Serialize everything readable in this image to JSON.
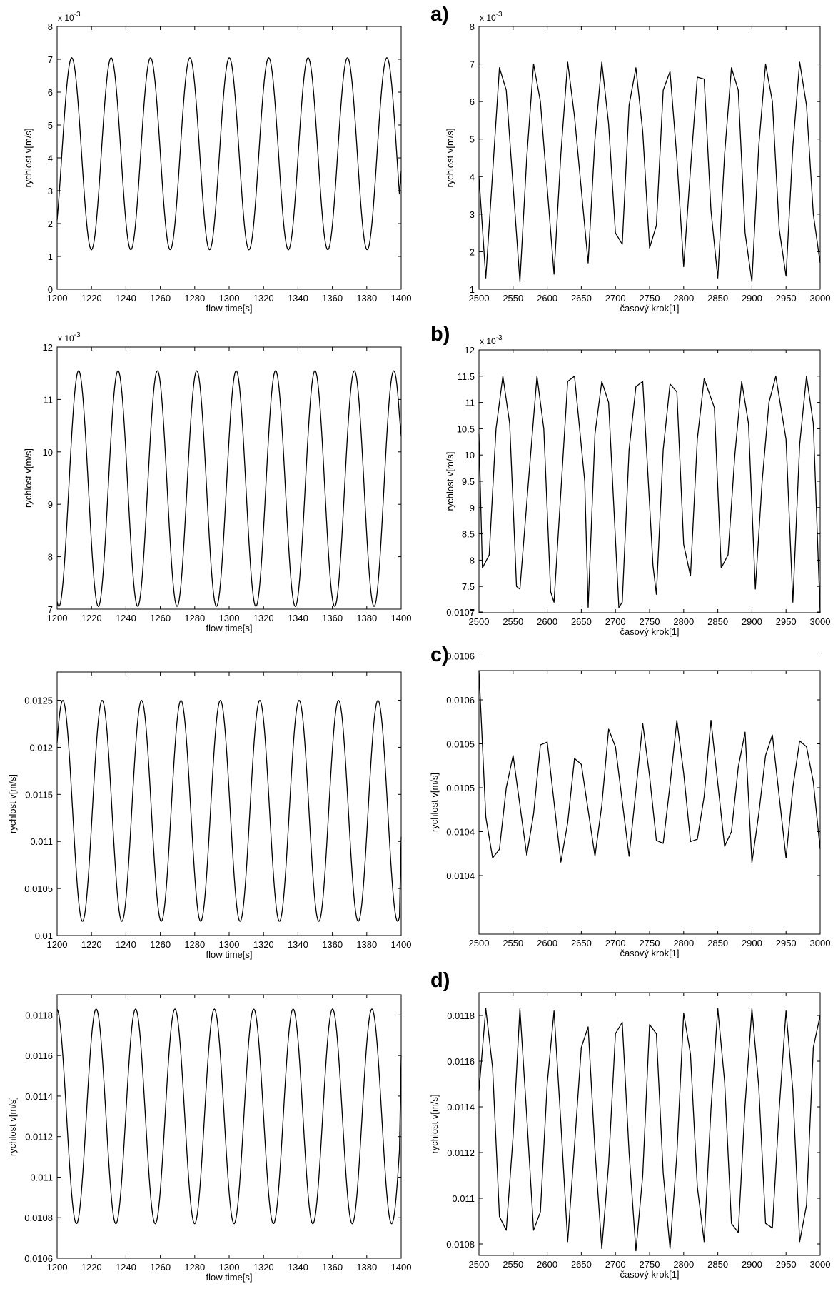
{
  "figure": {
    "panel_labels": [
      "a)",
      "b)",
      "c)",
      "d)"
    ]
  },
  "chart_data": [
    {
      "id": "a-left",
      "panel": "a)",
      "type": "line",
      "xlabel": "flow time[s]",
      "ylabel": "rychlost v[m/s]",
      "exponent_label": "x 10",
      "exponent_power": "-3",
      "xlim": [
        1200,
        1400
      ],
      "ylim": [
        0,
        8
      ],
      "xticks": [
        "1200",
        "1220",
        "1240",
        "1260",
        "1280",
        "1300",
        "1320",
        "1340",
        "1360",
        "1380",
        "1400"
      ],
      "yticks": [
        "0",
        "1",
        "2",
        "3",
        "4",
        "5",
        "6",
        "7",
        "8"
      ],
      "series": [
        {
          "model": "sinusoid",
          "min": 1.2,
          "max": 7.05,
          "period": 22.9,
          "first_peak_x": 1208.5,
          "x_start": 1200,
          "x_end": 1400,
          "end_value": 3.6
        }
      ]
    },
    {
      "id": "a-right",
      "panel": "a)",
      "type": "line",
      "xlabel": "časový krok[1]",
      "ylabel": "rychlost v[m/s]",
      "exponent_label": "x 10",
      "exponent_power": "-3",
      "xlim": [
        2500,
        3000
      ],
      "ylim": [
        1,
        8
      ],
      "xticks": [
        "2500",
        "2550",
        "2600",
        "2650",
        "2700",
        "2750",
        "2800",
        "2850",
        "2900",
        "2950",
        "3000"
      ],
      "yticks": [
        "1",
        "2",
        "3",
        "4",
        "5",
        "6",
        "7",
        "8"
      ],
      "series": [
        {
          "x": [
            2500,
            2510,
            2530,
            2540,
            2560,
            2570,
            2580,
            2590,
            2610,
            2620,
            2630,
            2640,
            2660,
            2670,
            2680,
            2690,
            2700,
            2710,
            2720,
            2730,
            2740,
            2750,
            2760,
            2770,
            2780,
            2790,
            2800,
            2810,
            2820,
            2830,
            2840,
            2850,
            2860,
            2870,
            2880,
            2890,
            2900,
            2910,
            2920,
            2930,
            2940,
            2950,
            2960,
            2970,
            2980,
            2990,
            3000
          ],
          "y": [
            4.0,
            1.3,
            6.9,
            6.3,
            1.2,
            4.5,
            7.0,
            6.0,
            1.4,
            4.6,
            7.05,
            5.6,
            1.7,
            5.0,
            7.05,
            5.4,
            2.5,
            2.2,
            5.9,
            6.9,
            5.2,
            2.1,
            2.7,
            6.3,
            6.8,
            4.5,
            1.6,
            4.2,
            6.65,
            6.6,
            3.1,
            1.3,
            4.6,
            6.9,
            6.3,
            2.5,
            1.2,
            4.8,
            7.0,
            6.0,
            2.6,
            1.35,
            4.8,
            7.05,
            5.9,
            3.0,
            1.7
          ]
        }
      ]
    },
    {
      "id": "b-left",
      "panel": "b)",
      "type": "line",
      "xlabel": "flow time[s]",
      "ylabel": "rychlost v[m/s]",
      "exponent_label": "x 10",
      "exponent_power": "-3",
      "xlim": [
        1200,
        1400
      ],
      "ylim": [
        7,
        12
      ],
      "xticks": [
        "1200",
        "1220",
        "1240",
        "1260",
        "1280",
        "1300",
        "1320",
        "1340",
        "1360",
        "1380",
        "1400"
      ],
      "yticks": [
        "7",
        "8",
        "9",
        "10",
        "11",
        "12"
      ],
      "series": [
        {
          "model": "sinusoid",
          "min": 7.05,
          "max": 11.55,
          "period": 22.9,
          "first_peak_x": 1212.5,
          "x_start": 1200,
          "x_end": 1400,
          "end_value": 10.3
        }
      ]
    },
    {
      "id": "b-right",
      "panel": "b)",
      "type": "line",
      "xlabel": "časový krok[1]",
      "ylabel": "rychlost v[m/s]",
      "exponent_label": "x 10",
      "exponent_power": "-3",
      "xlim": [
        2500,
        3000
      ],
      "ylim": [
        7,
        12
      ],
      "xticks": [
        "2500",
        "2550",
        "2600",
        "2650",
        "2700",
        "2750",
        "2800",
        "2850",
        "2900",
        "2950",
        "3000"
      ],
      "yticks": [
        "7",
        "7.5",
        "8",
        "8.5",
        "9",
        "9.5",
        "10",
        "10.5",
        "11",
        "11.5",
        "12"
      ],
      "series": [
        {
          "x": [
            2500,
            2505,
            2515,
            2525,
            2535,
            2545,
            2555,
            2560,
            2575,
            2585,
            2595,
            2605,
            2610,
            2620,
            2630,
            2640,
            2655,
            2660,
            2670,
            2680,
            2690,
            2705,
            2710,
            2720,
            2730,
            2740,
            2755,
            2760,
            2770,
            2780,
            2790,
            2800,
            2810,
            2820,
            2830,
            2845,
            2855,
            2865,
            2875,
            2885,
            2895,
            2905,
            2915,
            2925,
            2935,
            2950,
            2960,
            2970,
            2980,
            2990,
            3000
          ],
          "y": [
            10.4,
            7.85,
            8.1,
            10.5,
            11.5,
            10.6,
            7.5,
            7.45,
            9.9,
            11.5,
            10.5,
            7.4,
            7.2,
            9.3,
            11.4,
            11.5,
            9.5,
            7.1,
            10.4,
            11.4,
            11.0,
            7.1,
            7.2,
            10.1,
            11.3,
            11.4,
            7.9,
            7.35,
            10.1,
            11.35,
            11.2,
            8.3,
            7.7,
            10.3,
            11.45,
            10.9,
            7.85,
            8.1,
            10.0,
            11.4,
            10.6,
            7.45,
            9.5,
            11.0,
            11.5,
            10.3,
            7.2,
            10.2,
            11.5,
            10.6,
            7.0
          ]
        }
      ]
    },
    {
      "id": "c-left",
      "panel": "c)",
      "type": "line",
      "xlabel": "flow time[s]",
      "ylabel": "rychlost v[m/s]",
      "exponent_label": "",
      "exponent_power": "",
      "xlim": [
        1200,
        1400
      ],
      "ylim": [
        0.01,
        0.0128
      ],
      "xticks": [
        "1200",
        "1220",
        "1240",
        "1260",
        "1280",
        "1300",
        "1320",
        "1340",
        "1360",
        "1380",
        "1400"
      ],
      "yticks": [
        "0.01",
        "0.0105",
        "0.011",
        "0.0115",
        "0.012",
        "0.0125"
      ],
      "ytick_values": [
        0.01,
        0.0105,
        0.011,
        0.0115,
        0.012,
        0.0125
      ],
      "series": [
        {
          "model": "sinusoid",
          "min": 0.01015,
          "max": 0.0125,
          "period": 22.9,
          "first_peak_x": 1203.3,
          "x_start": 1200,
          "x_end": 1400,
          "end_value": 0.01105
        }
      ]
    },
    {
      "id": "c-right",
      "panel": "c)",
      "type": "line",
      "xlabel": "časový krok[1]",
      "ylabel": "rychlost v[m/s]",
      "exponent_label": "",
      "exponent_power": "",
      "xlim": [
        2500,
        3000
      ],
      "ylim": [
        0.010275,
        0.010725
      ],
      "xticks": [
        "2500",
        "2550",
        "2600",
        "2650",
        "2700",
        "2750",
        "2800",
        "2850",
        "2900",
        "2950",
        "3000"
      ],
      "yticks": [
        "0.0104",
        "0.0104",
        "0.0105",
        "0.0105",
        "0.0106",
        "0.0106",
        "0.0107"
      ],
      "ytick_values": [
        0.010375,
        0.01045,
        0.010525,
        0.0106,
        0.010675,
        0.01075,
        0.010825
      ],
      "series": [
        {
          "x": [
            2500,
            2510,
            2520,
            2530,
            2540,
            2550,
            2570,
            2580,
            2590,
            2600,
            2620,
            2630,
            2640,
            2650,
            2670,
            2680,
            2690,
            2700,
            2720,
            2730,
            2740,
            2750,
            2760,
            2770,
            2780,
            2790,
            2800,
            2810,
            2820,
            2830,
            2840,
            2860,
            2870,
            2880,
            2890,
            2900,
            2910,
            2920,
            2930,
            2950,
            2960,
            2970,
            2980,
            2990,
            3000
          ],
          "y": [
            0.010725,
            0.010475,
            0.010405,
            0.01042,
            0.010525,
            0.01058,
            0.01041,
            0.01048,
            0.010598,
            0.010603,
            0.010398,
            0.010465,
            0.010575,
            0.010565,
            0.010408,
            0.010495,
            0.010625,
            0.010595,
            0.010408,
            0.01052,
            0.010635,
            0.010545,
            0.010435,
            0.01043,
            0.01053,
            0.01064,
            0.01055,
            0.010433,
            0.010437,
            0.01051,
            0.01064,
            0.010425,
            0.01045,
            0.01056,
            0.01062,
            0.010397,
            0.01048,
            0.01058,
            0.010615,
            0.010405,
            0.010525,
            0.010605,
            0.010595,
            0.010535,
            0.01042
          ]
        }
      ]
    },
    {
      "id": "d-left",
      "panel": "d)",
      "type": "line",
      "xlabel": "flow time[s]",
      "ylabel": "rychlost v[m/s]",
      "exponent_label": "",
      "exponent_power": "",
      "xlim": [
        1200,
        1400
      ],
      "ylim": [
        0.0106,
        0.0119
      ],
      "xticks": [
        "1200",
        "1220",
        "1240",
        "1260",
        "1280",
        "1300",
        "1320",
        "1340",
        "1360",
        "1380",
        "1400"
      ],
      "yticks": [
        "0.0106",
        "0.0108",
        "0.011",
        "0.0112",
        "0.0114",
        "0.0116",
        "0.0118"
      ],
      "ytick_values": [
        0.0106,
        0.0108,
        0.011,
        0.0112,
        0.0114,
        0.0116,
        0.0118
      ],
      "series": [
        {
          "model": "sinusoid",
          "min": 0.01077,
          "max": 0.01183,
          "period": 22.9,
          "first_peak_x": 1199.8,
          "x_start": 1200,
          "x_end": 1400,
          "end_value": 0.0116
        }
      ]
    },
    {
      "id": "d-right",
      "panel": "d)",
      "type": "line",
      "xlabel": "časový krok[1]",
      "ylabel": "rychlost v[m/s]",
      "exponent_label": "",
      "exponent_power": "",
      "xlim": [
        2500,
        3000
      ],
      "ylim": [
        0.01075,
        0.0119
      ],
      "xticks": [
        "2500",
        "2550",
        "2600",
        "2650",
        "2700",
        "2750",
        "2800",
        "2850",
        "2900",
        "2950",
        "3000"
      ],
      "yticks": [
        "0.0108",
        "0.011",
        "0.0112",
        "0.0114",
        "0.0116",
        "0.0118"
      ],
      "ytick_values": [
        0.0108,
        0.011,
        0.0112,
        0.0114,
        0.0116,
        0.0118
      ],
      "series": [
        {
          "x": [
            2500,
            2510,
            2520,
            2530,
            2540,
            2550,
            2560,
            2570,
            2580,
            2590,
            2600,
            2610,
            2620,
            2630,
            2640,
            2650,
            2660,
            2670,
            2680,
            2690,
            2700,
            2710,
            2720,
            2730,
            2740,
            2750,
            2760,
            2770,
            2780,
            2790,
            2800,
            2810,
            2820,
            2830,
            2840,
            2850,
            2860,
            2870,
            2880,
            2890,
            2900,
            2910,
            2920,
            2930,
            2940,
            2950,
            2960,
            2970,
            2980,
            2990,
            3000
          ],
          "y": [
            0.01147,
            0.01183,
            0.01157,
            0.01092,
            0.01086,
            0.01127,
            0.01183,
            0.01136,
            0.01086,
            0.01094,
            0.0115,
            0.01182,
            0.01133,
            0.01081,
            0.01123,
            0.01166,
            0.01175,
            0.01121,
            0.01078,
            0.01115,
            0.01172,
            0.01177,
            0.0112,
            0.01077,
            0.0111,
            0.01176,
            0.01172,
            0.01111,
            0.01078,
            0.01119,
            0.01181,
            0.01163,
            0.01105,
            0.01081,
            0.01139,
            0.01183,
            0.01151,
            0.01089,
            0.01085,
            0.01141,
            0.01183,
            0.01149,
            0.01089,
            0.01087,
            0.01139,
            0.01182,
            0.01147,
            0.01081,
            0.01097,
            0.01166,
            0.0118
          ]
        }
      ]
    }
  ]
}
